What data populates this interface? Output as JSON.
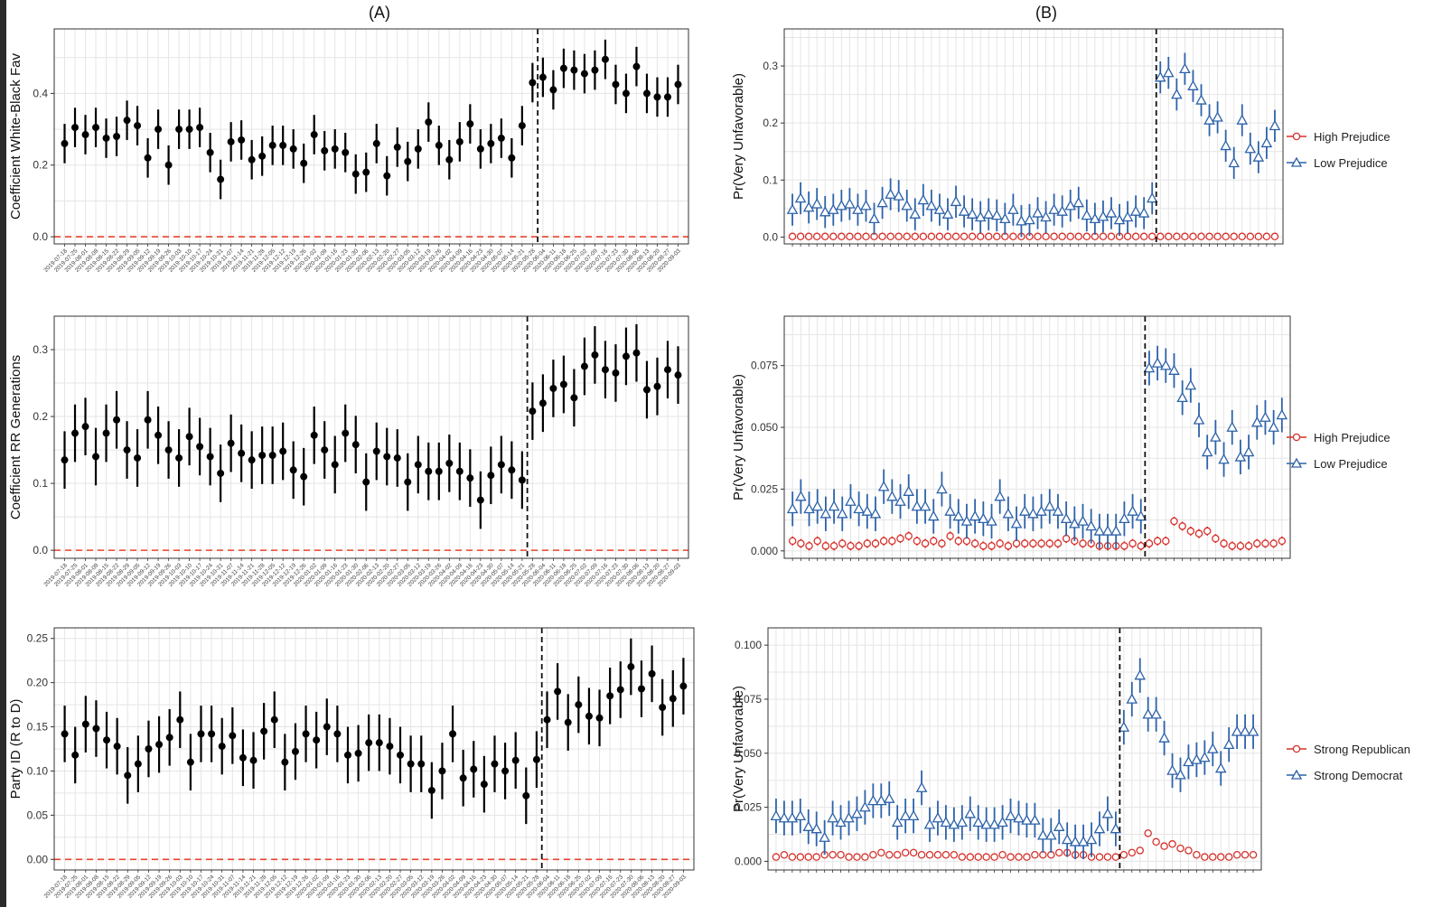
{
  "labels": {
    "A": "(A)",
    "B": "(B)"
  },
  "colors": {
    "point_black": "#000000",
    "high": "#d6312b",
    "low": "#2d62a8",
    "zero_line": "#e8432f",
    "grid": "#e5e5e5",
    "frame": "#333333"
  },
  "chart_data": [
    {
      "id": "A1",
      "type": "scatter",
      "errorbars": true,
      "ylabel": "Coefficient White-Black Fav",
      "ylim": [
        -0.02,
        0.58
      ],
      "yticks": [
        "0.0",
        "0.2",
        "0.4"
      ],
      "x": [
        "2019-07-18",
        "2019-07-25",
        "2019-08-01",
        "2019-08-08",
        "2019-08-15",
        "2019-08-22",
        "2019-08-29",
        "2019-09-05",
        "2019-09-12",
        "2019-09-19",
        "2019-09-26",
        "2019-10-03",
        "2019-10-10",
        "2019-10-17",
        "2019-10-24",
        "2019-10-31",
        "2019-11-07",
        "2019-11-14",
        "2019-11-21",
        "2019-11-28",
        "2019-12-05",
        "2019-12-12",
        "2019-12-19",
        "2019-12-26",
        "2020-01-02",
        "2020-01-09",
        "2020-01-16",
        "2020-01-23",
        "2020-01-30",
        "2020-02-06",
        "2020-02-13",
        "2020-02-20",
        "2020-02-27",
        "2020-03-05",
        "2020-03-12",
        "2020-03-19",
        "2020-03-26",
        "2020-04-02",
        "2020-04-09",
        "2020-04-16",
        "2020-04-23",
        "2020-04-30",
        "2020-05-07",
        "2020-05-14",
        "2020-05-21",
        "2020-05-28",
        "2020-06-04",
        "2020-06-11",
        "2020-06-18",
        "2020-06-25",
        "2020-07-02",
        "2020-07-09",
        "2020-07-16",
        "2020-07-23",
        "2020-07-30",
        "2020-08-06",
        "2020-08-13",
        "2020-08-20",
        "2020-08-27",
        "2020-09-03"
      ],
      "series": [
        {
          "color": "point_black",
          "marker": "dot",
          "values": [
            0.26,
            0.305,
            0.285,
            0.305,
            0.275,
            0.28,
            0.325,
            0.31,
            0.22,
            0.3,
            0.2,
            0.3,
            0.3,
            0.305,
            0.235,
            0.16,
            0.265,
            0.27,
            0.215,
            0.225,
            0.255,
            0.255,
            0.245,
            0.205,
            0.285,
            0.24,
            0.245,
            0.235,
            0.175,
            0.18,
            0.26,
            0.17,
            0.25,
            0.21,
            0.245,
            0.32,
            0.255,
            0.215,
            0.265,
            0.315,
            0.245,
            0.26,
            0.275,
            0.22,
            0.31,
            0.43,
            0.445,
            0.41,
            0.47,
            0.465,
            0.455,
            0.465,
            0.495,
            0.425,
            0.4,
            0.475,
            0.4,
            0.39,
            0.39,
            0.425
          ],
          "err": 0.055
        }
      ],
      "vline_index": 45.5
    },
    {
      "id": "B1",
      "type": "scatter",
      "errorbars": true,
      "ylabel": "Pr(Very Unfavorable)",
      "ylim": [
        -0.012,
        0.365
      ],
      "yticks": [
        "0.0",
        "0.1",
        "0.2",
        "0.3"
      ],
      "x_count": 60,
      "series": [
        {
          "name": "High Prejudice",
          "color": "high",
          "marker": "circle",
          "values": [
            0.001,
            0.001,
            0.001,
            0.001,
            0.001,
            0.001,
            0.001,
            0.001,
            0.001,
            0.001,
            0.001,
            0.001,
            0.001,
            0.001,
            0.001,
            0.001,
            0.001,
            0.001,
            0.001,
            0.001,
            0.001,
            0.001,
            0.001,
            0.001,
            0.001,
            0.001,
            0.001,
            0.001,
            0.001,
            0.001,
            0.001,
            0.001,
            0.001,
            0.001,
            0.001,
            0.001,
            0.001,
            0.001,
            0.001,
            0.001,
            0.001,
            0.001,
            0.001,
            0.001,
            0.001,
            0.001,
            0.001,
            0.001,
            0.001,
            0.001,
            0.001,
            0.001,
            0.001,
            0.001,
            0.001,
            0.001,
            0.001,
            0.001,
            0.001,
            0.001
          ],
          "err": 0.0
        },
        {
          "name": "Low Prejudice",
          "color": "low",
          "marker": "triangle",
          "values": [
            0.048,
            0.068,
            0.052,
            0.058,
            0.044,
            0.048,
            0.055,
            0.058,
            0.048,
            0.055,
            0.032,
            0.06,
            0.075,
            0.072,
            0.055,
            0.04,
            0.065,
            0.055,
            0.048,
            0.04,
            0.062,
            0.045,
            0.04,
            0.035,
            0.04,
            0.038,
            0.032,
            0.048,
            0.028,
            0.03,
            0.042,
            0.035,
            0.048,
            0.045,
            0.055,
            0.06,
            0.038,
            0.032,
            0.036,
            0.042,
            0.03,
            0.035,
            0.045,
            0.042,
            0.068,
            0.28,
            0.288,
            0.25,
            0.295,
            0.265,
            0.24,
            0.205,
            0.21,
            0.16,
            0.13,
            0.205,
            0.155,
            0.14,
            0.165,
            0.195
          ],
          "err": 0.028
        }
      ],
      "vline_index": 44.5
    },
    {
      "id": "A2",
      "type": "scatter",
      "errorbars": true,
      "ylabel": "Coefficient RR Generations",
      "ylim": [
        -0.012,
        0.35
      ],
      "yticks": [
        "0.0",
        "0.1",
        "0.2",
        "0.3"
      ],
      "x": [
        "2019-07-18",
        "2019-07-25",
        "2019-08-01",
        "2019-08-08",
        "2019-08-15",
        "2019-08-22",
        "2019-08-29",
        "2019-09-05",
        "2019-09-12",
        "2019-09-19",
        "2019-09-26",
        "2019-10-03",
        "2019-10-10",
        "2019-10-17",
        "2019-10-24",
        "2019-10-31",
        "2019-11-07",
        "2019-11-14",
        "2019-11-21",
        "2019-11-28",
        "2019-12-05",
        "2019-12-12",
        "2019-12-19",
        "2019-12-26",
        "2020-01-02",
        "2020-01-09",
        "2020-01-16",
        "2020-01-23",
        "2020-01-30",
        "2020-02-06",
        "2020-02-13",
        "2020-02-20",
        "2020-02-27",
        "2020-03-05",
        "2020-03-12",
        "2020-03-19",
        "2020-03-26",
        "2020-04-02",
        "2020-04-09",
        "2020-04-16",
        "2020-04-23",
        "2020-04-30",
        "2020-05-07",
        "2020-05-14",
        "2020-05-21",
        "2020-05-28",
        "2020-06-04",
        "2020-06-11",
        "2020-06-18",
        "2020-06-25",
        "2020-07-02",
        "2020-07-09",
        "2020-07-16",
        "2020-07-23",
        "2020-07-30",
        "2020-08-06",
        "2020-08-13",
        "2020-08-20",
        "2020-08-27",
        "2020-09-03"
      ],
      "series": [
        {
          "color": "point_black",
          "marker": "dot",
          "values": [
            0.135,
            0.175,
            0.185,
            0.14,
            0.175,
            0.195,
            0.15,
            0.138,
            0.195,
            0.172,
            0.15,
            0.138,
            0.17,
            0.155,
            0.14,
            0.115,
            0.16,
            0.145,
            0.135,
            0.142,
            0.142,
            0.148,
            0.12,
            0.11,
            0.172,
            0.15,
            0.128,
            0.175,
            0.158,
            0.102,
            0.148,
            0.14,
            0.138,
            0.102,
            0.128,
            0.118,
            0.118,
            0.13,
            0.118,
            0.108,
            0.075,
            0.112,
            0.128,
            0.12,
            0.105,
            0.208,
            0.22,
            0.242,
            0.248,
            0.228,
            0.275,
            0.292,
            0.27,
            0.265,
            0.29,
            0.295,
            0.24,
            0.245,
            0.27,
            0.262
          ],
          "err": 0.043
        }
      ],
      "vline_index": 44.5
    },
    {
      "id": "B2",
      "type": "scatter",
      "errorbars": true,
      "ylabel": "Pr(Very Unfavorable)",
      "ylim": [
        -0.003,
        0.095
      ],
      "yticks": [
        "0.000",
        "0.025",
        "0.050",
        "0.075"
      ],
      "x_count": 60,
      "series": [
        {
          "name": "High Prejudice",
          "color": "high",
          "marker": "circle",
          "values": [
            0.004,
            0.003,
            0.002,
            0.004,
            0.002,
            0.002,
            0.003,
            0.002,
            0.002,
            0.003,
            0.003,
            0.004,
            0.004,
            0.005,
            0.006,
            0.004,
            0.003,
            0.004,
            0.003,
            0.006,
            0.004,
            0.004,
            0.003,
            0.002,
            0.002,
            0.003,
            0.002,
            0.003,
            0.003,
            0.003,
            0.003,
            0.003,
            0.003,
            0.005,
            0.004,
            0.003,
            0.003,
            0.002,
            0.002,
            0.002,
            0.002,
            0.003,
            0.002,
            0.003,
            0.004,
            0.004,
            0.012,
            0.01,
            0.008,
            0.007,
            0.008,
            0.005,
            0.003,
            0.002,
            0.002,
            0.002,
            0.003,
            0.003,
            0.003,
            0.004
          ],
          "err": 0.0018
        },
        {
          "name": "Low Prejudice",
          "color": "low",
          "marker": "triangle",
          "values": [
            0.017,
            0.022,
            0.017,
            0.018,
            0.015,
            0.018,
            0.015,
            0.02,
            0.017,
            0.016,
            0.015,
            0.026,
            0.022,
            0.02,
            0.024,
            0.018,
            0.018,
            0.014,
            0.025,
            0.016,
            0.014,
            0.012,
            0.014,
            0.013,
            0.012,
            0.022,
            0.015,
            0.011,
            0.016,
            0.015,
            0.016,
            0.018,
            0.016,
            0.013,
            0.011,
            0.012,
            0.01,
            0.008,
            0.008,
            0.008,
            0.013,
            0.016,
            0.014,
            0.074,
            0.076,
            0.075,
            0.073,
            0.062,
            0.067,
            0.053,
            0.04,
            0.046,
            0.037,
            0.05,
            0.038,
            0.04,
            0.052,
            0.054,
            0.05,
            0.055
          ],
          "err": 0.007
        }
      ],
      "vline_index": 42.5
    },
    {
      "id": "A3",
      "type": "scatter",
      "errorbars": true,
      "ylabel": "Party ID (R to D)",
      "ylim": [
        -0.012,
        0.262
      ],
      "yticks": [
        "0.00",
        "0.05",
        "0.10",
        "0.15",
        "0.20",
        "0.25"
      ],
      "x": [
        "2019-07-18",
        "2019-07-25",
        "2019-08-01",
        "2019-08-08",
        "2019-08-15",
        "2019-08-22",
        "2019-08-29",
        "2019-09-05",
        "2019-09-12",
        "2019-09-19",
        "2019-09-26",
        "2019-10-03",
        "2019-10-10",
        "2019-10-17",
        "2019-10-24",
        "2019-10-31",
        "2019-11-07",
        "2019-11-14",
        "2019-11-21",
        "2019-11-28",
        "2019-12-05",
        "2019-12-12",
        "2019-12-19",
        "2019-12-26",
        "2020-01-02",
        "2020-01-09",
        "2020-01-16",
        "2020-01-23",
        "2020-01-30",
        "2020-02-06",
        "2020-02-13",
        "2020-02-20",
        "2020-02-27",
        "2020-03-05",
        "2020-03-12",
        "2020-03-19",
        "2020-03-26",
        "2020-04-02",
        "2020-04-09",
        "2020-04-16",
        "2020-04-23",
        "2020-04-30",
        "2020-05-07",
        "2020-05-14",
        "2020-05-21",
        "2020-05-28",
        "2020-06-04",
        "2020-06-11",
        "2020-06-18",
        "2020-06-25",
        "2020-07-02",
        "2020-07-09",
        "2020-07-16",
        "2020-07-23",
        "2020-07-30",
        "2020-08-06",
        "2020-08-13",
        "2020-08-20",
        "2020-08-27",
        "2020-09-03"
      ],
      "series": [
        {
          "color": "point_black",
          "marker": "dot",
          "values": [
            0.142,
            0.118,
            0.153,
            0.148,
            0.135,
            0.128,
            0.095,
            0.108,
            0.125,
            0.13,
            0.138,
            0.158,
            0.11,
            0.142,
            0.142,
            0.128,
            0.14,
            0.115,
            0.112,
            0.145,
            0.158,
            0.11,
            0.122,
            0.142,
            0.135,
            0.15,
            0.142,
            0.118,
            0.12,
            0.132,
            0.132,
            0.128,
            0.118,
            0.108,
            0.108,
            0.078,
            0.1,
            0.142,
            0.092,
            0.102,
            0.085,
            0.108,
            0.1,
            0.112,
            0.072,
            0.113,
            0.158,
            0.19,
            0.155,
            0.175,
            0.162,
            0.16,
            0.185,
            0.192,
            0.218,
            0.193,
            0.21,
            0.172,
            0.182,
            0.196
          ],
          "err": 0.032
        }
      ],
      "vline_index": 45.5
    },
    {
      "id": "B3",
      "type": "scatter",
      "errorbars": true,
      "ylabel": "Pr(Very Unfavorable)",
      "ylim": [
        -0.004,
        0.108
      ],
      "yticks": [
        "0.000",
        "0.025",
        "0.050",
        "0.075",
        "0.100"
      ],
      "x_count": 60,
      "series": [
        {
          "name": "Strong Republican",
          "color": "high",
          "marker": "circle",
          "values": [
            0.002,
            0.003,
            0.002,
            0.002,
            0.002,
            0.002,
            0.003,
            0.003,
            0.003,
            0.002,
            0.002,
            0.002,
            0.003,
            0.004,
            0.003,
            0.003,
            0.004,
            0.004,
            0.003,
            0.003,
            0.003,
            0.003,
            0.003,
            0.002,
            0.002,
            0.002,
            0.002,
            0.002,
            0.003,
            0.002,
            0.002,
            0.002,
            0.003,
            0.003,
            0.003,
            0.004,
            0.004,
            0.003,
            0.003,
            0.002,
            0.002,
            0.002,
            0.002,
            0.003,
            0.004,
            0.005,
            0.013,
            0.009,
            0.007,
            0.008,
            0.006,
            0.005,
            0.003,
            0.002,
            0.002,
            0.002,
            0.002,
            0.003,
            0.003,
            0.003
          ],
          "err": 0.0015
        },
        {
          "name": "Strong Democrat",
          "color": "low",
          "marker": "triangle",
          "values": [
            0.021,
            0.02,
            0.02,
            0.021,
            0.016,
            0.015,
            0.011,
            0.02,
            0.018,
            0.02,
            0.022,
            0.025,
            0.028,
            0.028,
            0.029,
            0.018,
            0.021,
            0.021,
            0.034,
            0.017,
            0.02,
            0.018,
            0.017,
            0.018,
            0.022,
            0.018,
            0.017,
            0.017,
            0.018,
            0.021,
            0.02,
            0.019,
            0.019,
            0.012,
            0.012,
            0.016,
            0.01,
            0.009,
            0.009,
            0.01,
            0.015,
            0.022,
            0.015,
            0.062,
            0.075,
            0.086,
            0.068,
            0.068,
            0.057,
            0.042,
            0.04,
            0.046,
            0.047,
            0.048,
            0.052,
            0.043,
            0.054,
            0.06,
            0.06,
            0.06
          ],
          "err": 0.008
        }
      ],
      "vline_index": 42.5
    }
  ]
}
